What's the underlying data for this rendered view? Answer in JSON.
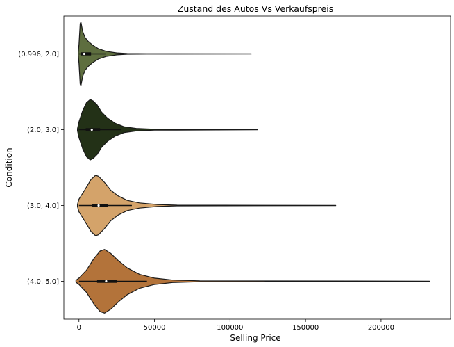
{
  "chart_data": {
    "type": "violin",
    "orientation": "horizontal",
    "title": "Zustand des Autos Vs Verkaufspreis",
    "xlabel": "Selling Price",
    "ylabel": "Condition",
    "xlim": [
      -10000,
      246000
    ],
    "xticks": [
      0,
      50000,
      100000,
      150000,
      200000
    ],
    "grid": false,
    "legend": "none",
    "categories": [
      "(0.996, 2.0]",
      "(2.0, 3.0]",
      "(3.0, 4.0]",
      "(4.0, 5.0]"
    ],
    "series": [
      {
        "category": "(0.996, 2.0]",
        "color": "#5e6e3f",
        "min": -500,
        "max": 114000,
        "q1": 1000,
        "median": 3500,
        "q3": 8000,
        "whisker_low": 0,
        "whisker_high": 18000,
        "density": [
          [
            -500,
            0.03
          ],
          [
            0,
            0.3
          ],
          [
            800,
            0.95
          ],
          [
            1300,
            1.0
          ],
          [
            2500,
            0.7
          ],
          [
            4000,
            0.52
          ],
          [
            6000,
            0.4
          ],
          [
            9000,
            0.28
          ],
          [
            13000,
            0.16
          ],
          [
            18000,
            0.08
          ],
          [
            25000,
            0.03
          ],
          [
            32000,
            0.012
          ],
          [
            45000,
            0.006
          ],
          [
            114000,
            0.004
          ]
        ]
      },
      {
        "category": "(2.0, 3.0]",
        "color": "#233117",
        "min": -1000,
        "max": 118000,
        "q1": 4500,
        "median": 8500,
        "q3": 14000,
        "whisker_low": 0,
        "whisker_high": 28000,
        "density": [
          [
            -1000,
            0.03
          ],
          [
            0,
            0.25
          ],
          [
            2500,
            0.6
          ],
          [
            5000,
            0.85
          ],
          [
            7500,
            0.95
          ],
          [
            9500,
            0.9
          ],
          [
            12000,
            0.78
          ],
          [
            15000,
            0.55
          ],
          [
            19000,
            0.36
          ],
          [
            24000,
            0.2
          ],
          [
            30000,
            0.09
          ],
          [
            38000,
            0.04
          ],
          [
            50000,
            0.015
          ],
          [
            118000,
            0.005
          ]
        ]
      },
      {
        "category": "(3.0, 4.0]",
        "color": "#d4a36a",
        "min": -1000,
        "max": 170000,
        "q1": 8500,
        "median": 13000,
        "q3": 19000,
        "whisker_low": 0,
        "whisker_high": 35000,
        "density": [
          [
            -1000,
            0.03
          ],
          [
            0,
            0.2
          ],
          [
            4000,
            0.5
          ],
          [
            8000,
            0.82
          ],
          [
            11000,
            0.95
          ],
          [
            13000,
            0.92
          ],
          [
            17000,
            0.72
          ],
          [
            21000,
            0.48
          ],
          [
            26000,
            0.3
          ],
          [
            32000,
            0.16
          ],
          [
            40000,
            0.08
          ],
          [
            52000,
            0.03
          ],
          [
            65000,
            0.012
          ],
          [
            170000,
            0.004
          ]
        ]
      },
      {
        "category": "(4.0, 5.0]",
        "color": "#b3733a",
        "min": -2000,
        "max": 232000,
        "q1": 12000,
        "median": 18000,
        "q3": 25000,
        "whisker_low": 0,
        "whisker_high": 45000,
        "density": [
          [
            -2000,
            0.03
          ],
          [
            0,
            0.1
          ],
          [
            5000,
            0.35
          ],
          [
            10000,
            0.72
          ],
          [
            14000,
            0.95
          ],
          [
            17000,
            1.0
          ],
          [
            21000,
            0.88
          ],
          [
            26000,
            0.65
          ],
          [
            32000,
            0.42
          ],
          [
            40000,
            0.22
          ],
          [
            50000,
            0.1
          ],
          [
            62000,
            0.04
          ],
          [
            80000,
            0.015
          ],
          [
            232000,
            0.005
          ]
        ]
      }
    ]
  }
}
